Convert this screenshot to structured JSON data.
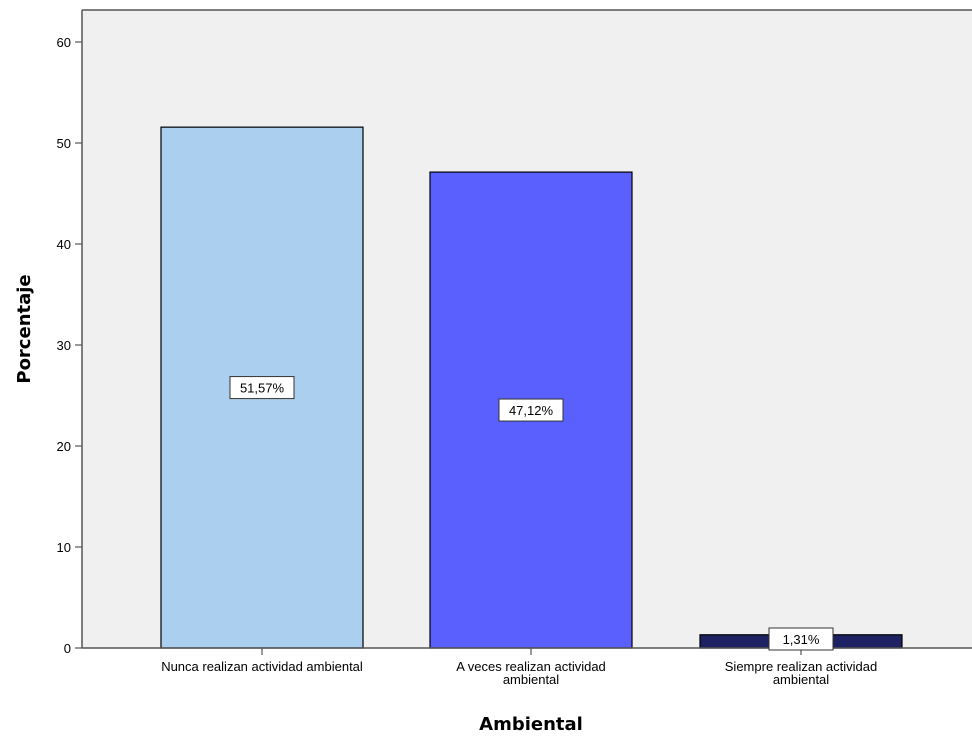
{
  "chart_data": {
    "type": "bar",
    "categories": [
      [
        "Nunca realizan actividad ambiental"
      ],
      [
        "A veces realizan actividad",
        "ambiental"
      ],
      [
        "Siempre realizan actividad",
        "ambiental"
      ]
    ],
    "values": [
      51.57,
      47.12,
      1.31
    ],
    "data_labels": [
      "51,57%",
      "47,12%",
      "1,31%"
    ],
    "bar_colors": [
      "#abcfee",
      "#5a60fe",
      "#1e2263"
    ],
    "plot_background": "#f0f0f0",
    "xlabel": "Ambiental",
    "ylabel": "Porcentaje",
    "ylim": [
      0,
      63
    ],
    "yticks": [
      0,
      10,
      20,
      30,
      40,
      50,
      60
    ],
    "grid": false,
    "legend": "none"
  }
}
